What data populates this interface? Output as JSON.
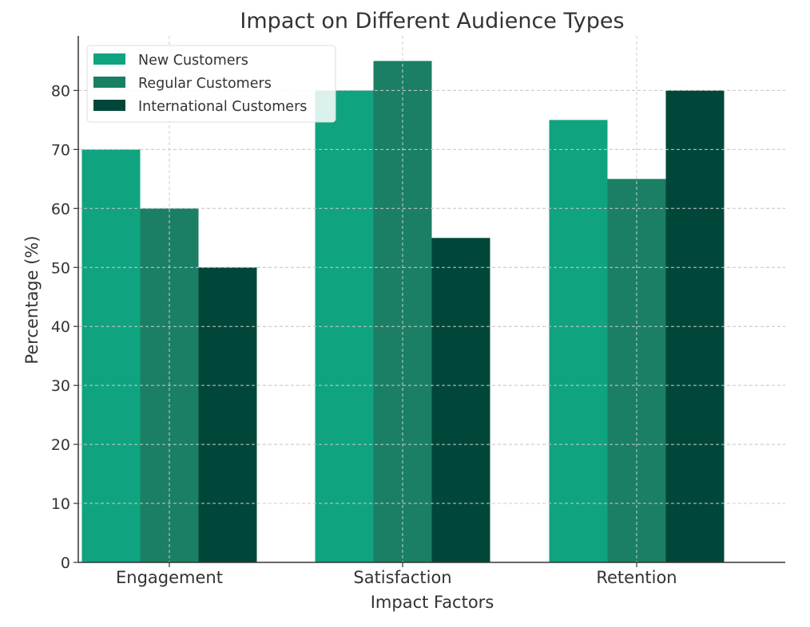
{
  "chart_data": {
    "type": "bar",
    "title": "Impact on Different Audience Types",
    "xlabel": "Impact Factors",
    "ylabel": "Percentage (%)",
    "categories": [
      "Engagement",
      "Satisfaction",
      "Retention"
    ],
    "series": [
      {
        "name": "New Customers",
        "values": [
          70,
          80,
          75
        ],
        "color": "#10a37f"
      },
      {
        "name": "Regular Customers",
        "values": [
          60,
          85,
          65
        ],
        "color": "#1a7f64"
      },
      {
        "name": "International Customers",
        "values": [
          50,
          55,
          80
        ],
        "color": "#00473a"
      }
    ],
    "ylim": [
      0,
      89.25
    ],
    "yticks": [
      0,
      10,
      20,
      30,
      40,
      50,
      60,
      70,
      80
    ],
    "grid": true,
    "legend": "top-left"
  }
}
